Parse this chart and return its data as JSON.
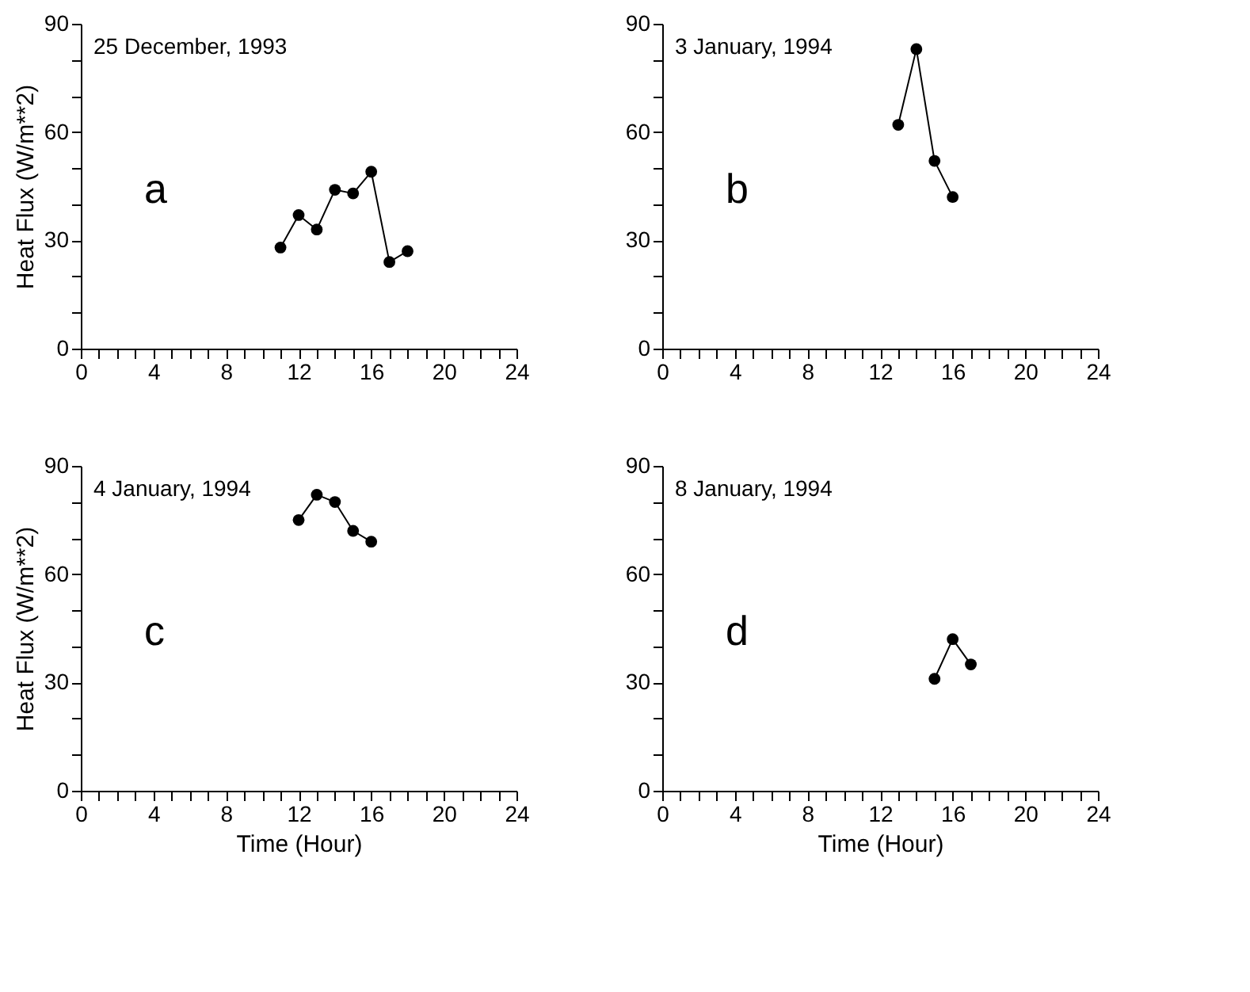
{
  "chart_data": [
    {
      "type": "line",
      "marker": "circle",
      "ylabel": "Heat Flux (W/m**2)",
      "tick_labels": true,
      "x": [
        11,
        12,
        13,
        14,
        15,
        16,
        17,
        18
      ],
      "series": [
        {
          "color": "#000000",
          "values": [
            28,
            37,
            33,
            44,
            43,
            49,
            24,
            27
          ]
        }
      ],
      "annotations": [
        "25 December, 1993",
        "a"
      ],
      "xlim": [
        0,
        24
      ],
      "ylim": [
        0,
        90
      ],
      "xticks": [
        0,
        {
          "value": 1,
          "label": null
        },
        {
          "value": 2,
          "label": null
        },
        {
          "value": 3,
          "label": null
        },
        4,
        {
          "value": 5,
          "label": null
        },
        {
          "value": 6,
          "label": null
        },
        {
          "value": 7,
          "label": null
        },
        8,
        {
          "value": 9,
          "label": null
        },
        {
          "value": 10,
          "label": null
        },
        {
          "value": 11,
          "label": null
        },
        12,
        {
          "value": 13,
          "label": null
        },
        {
          "value": 14,
          "label": null
        },
        {
          "value": 15,
          "label": null
        },
        16,
        {
          "value": 17,
          "label": null
        },
        {
          "value": 18,
          "label": null
        },
        {
          "value": 19,
          "label": null
        },
        20,
        {
          "value": 21,
          "label": null
        },
        {
          "value": 22,
          "label": null
        },
        {
          "value": 23,
          "label": null
        },
        24
      ],
      "yticks": [
        0,
        {
          "value": 10,
          "label": null
        },
        {
          "value": 20,
          "label": null
        },
        30,
        {
          "value": 40,
          "label": null
        },
        {
          "value": 50,
          "label": null
        },
        60,
        {
          "value": 70,
          "label": null
        },
        {
          "value": 80,
          "label": null
        },
        90
      ],
      "grid": false
    },
    {
      "type": "line",
      "marker": "circle",
      "x": [
        13,
        14,
        15,
        16
      ],
      "series": [
        {
          "color": "#000000",
          "values": [
            62,
            83,
            52,
            42
          ]
        }
      ],
      "annotations": [
        "3 January, 1994",
        "b"
      ],
      "xlim": [
        0,
        24
      ],
      "ylim": [
        0,
        90
      ],
      "xticks": [
        0,
        {
          "value": 1,
          "label": null
        },
        {
          "value": 2,
          "label": null
        },
        {
          "value": 3,
          "label": null
        },
        4,
        {
          "value": 5,
          "label": null
        },
        {
          "value": 6,
          "label": null
        },
        {
          "value": 7,
          "label": null
        },
        8,
        {
          "value": 9,
          "label": null
        },
        {
          "value": 10,
          "label": null
        },
        {
          "value": 11,
          "label": null
        },
        12,
        {
          "value": 13,
          "label": null
        },
        {
          "value": 14,
          "label": null
        },
        {
          "value": 15,
          "label": null
        },
        16,
        {
          "value": 17,
          "label": null
        },
        {
          "value": 18,
          "label": null
        },
        {
          "value": 19,
          "label": null
        },
        20,
        {
          "value": 21,
          "label": null
        },
        {
          "value": 22,
          "label": null
        },
        {
          "value": 23,
          "label": null
        },
        24
      ],
      "yticks": [
        0,
        {
          "value": 10,
          "label": null
        },
        {
          "value": 20,
          "label": null
        },
        30,
        {
          "value": 40,
          "label": null
        },
        {
          "value": 50,
          "label": null
        },
        60,
        {
          "value": 70,
          "label": null
        },
        {
          "value": 80,
          "label": null
        },
        90
      ],
      "grid": false
    },
    {
      "type": "line",
      "marker": "circle",
      "ylabel": "Heat Flux (W/m**2)",
      "xlabel": "Time (Hour)",
      "x": [
        12,
        13,
        14,
        15,
        16
      ],
      "series": [
        {
          "color": "#000000",
          "values": [
            75,
            82,
            80,
            72,
            69
          ]
        }
      ],
      "annotations": [
        "4 January, 1994",
        "c"
      ],
      "xlim": [
        0,
        24
      ],
      "ylim": [
        0,
        90
      ],
      "xticks": [
        0,
        {
          "value": 1,
          "label": null
        },
        {
          "value": 2,
          "label": null
        },
        {
          "value": 3,
          "label": null
        },
        4,
        {
          "value": 5,
          "label": null
        },
        {
          "value": 6,
          "label": null
        },
        {
          "value": 7,
          "label": null
        },
        8,
        {
          "value": 9,
          "label": null
        },
        {
          "value": 10,
          "label": null
        },
        {
          "value": 11,
          "label": null
        },
        12,
        {
          "value": 13,
          "label": null
        },
        {
          "value": 14,
          "label": null
        },
        {
          "value": 15,
          "label": null
        },
        16,
        {
          "value": 17,
          "label": null
        },
        {
          "value": 18,
          "label": null
        },
        {
          "value": 19,
          "label": null
        },
        20,
        {
          "value": 21,
          "label": null
        },
        {
          "value": 22,
          "label": null
        },
        {
          "value": 23,
          "label": null
        },
        24
      ],
      "yticks": [
        0,
        {
          "value": 10,
          "label": null
        },
        {
          "value": 20,
          "label": null
        },
        30,
        {
          "value": 40,
          "label": null
        },
        {
          "value": 50,
          "label": null
        },
        60,
        {
          "value": 70,
          "label": null
        },
        {
          "value": 80,
          "label": null
        },
        90
      ],
      "grid": false
    },
    {
      "type": "line",
      "marker": "circle",
      "xlabel": "Time (Hour)",
      "x": [
        15,
        16,
        17
      ],
      "series": [
        {
          "color": "#000000",
          "values": [
            31,
            42,
            35
          ]
        }
      ],
      "annotations": [
        "8 January, 1994",
        "d"
      ],
      "xlim": [
        0,
        24
      ],
      "ylim": [
        0,
        90
      ],
      "xticks": [
        0,
        {
          "value": 1,
          "label": null
        },
        {
          "value": 2,
          "label": null
        },
        {
          "value": 3,
          "label": null
        },
        4,
        {
          "value": 5,
          "label": null
        },
        {
          "value": 6,
          "label": null
        },
        {
          "value": 7,
          "label": null
        },
        8,
        {
          "value": 9,
          "label": null
        },
        {
          "value": 10,
          "label": null
        },
        {
          "value": 11,
          "label": null
        },
        12,
        {
          "value": 13,
          "label": null
        },
        {
          "value": 14,
          "label": null
        },
        {
          "value": 15,
          "label": null
        },
        16,
        {
          "value": 17,
          "label": null
        },
        {
          "value": 18,
          "label": null
        },
        {
          "value": 19,
          "label": null
        },
        20,
        {
          "value": 21,
          "label": null
        },
        {
          "value": 22,
          "label": null
        },
        {
          "value": 23,
          "label": null
        },
        24
      ],
      "yticks": [
        0,
        {
          "value": 10,
          "label": null
        },
        {
          "value": 20,
          "label": null
        },
        30,
        {
          "value": 40,
          "label": null
        },
        {
          "value": 50,
          "label": null
        },
        60,
        {
          "value": 70,
          "label": null
        },
        {
          "value": 80,
          "label": null
        },
        90
      ],
      "grid": false
    }
  ]
}
